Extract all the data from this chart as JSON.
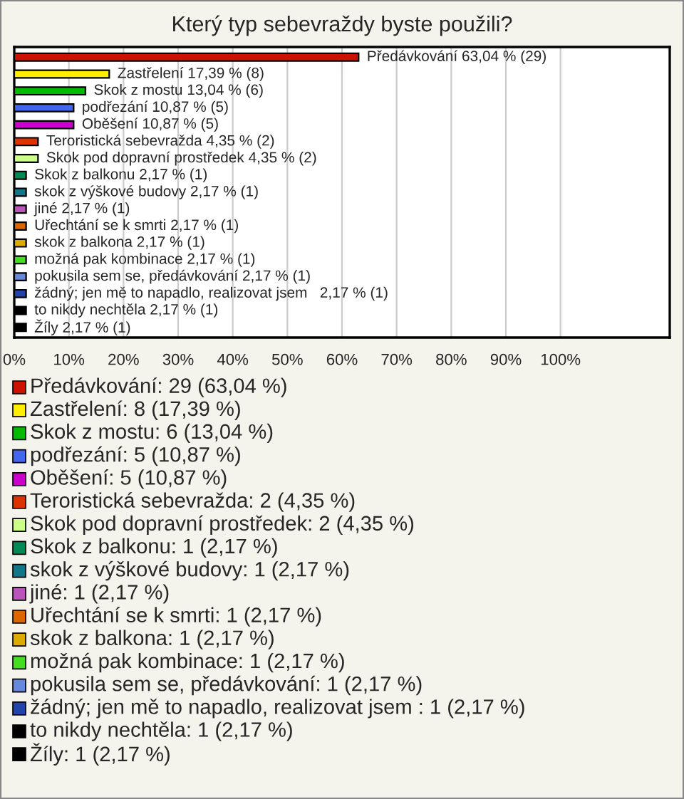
{
  "chart_data": {
    "type": "bar",
    "orientation": "horizontal",
    "title": "Který typ sebevraždy byste použili?",
    "categories": [
      "Předávkování",
      "Zastřelení",
      "Skok z mostu",
      "podřezání",
      "Oběšení",
      "Teroristická sebevražda",
      "Skok pod dopravní prostředek",
      "Skok z balkonu",
      "skok z výškové budovy",
      "jiné",
      "Uřechtání se k smrti",
      "skok z balkona",
      "možná pak kombinace",
      "pokusila sem se, předávkování",
      "žádný; jen mě to napadlo, realizovat jsem ",
      "to nikdy nechtěla",
      "Žíly"
    ],
    "values": [
      63.04,
      17.39,
      13.04,
      10.87,
      10.87,
      4.35,
      4.35,
      2.17,
      2.17,
      2.17,
      2.17,
      2.17,
      2.17,
      2.17,
      2.17,
      2.17,
      2.17
    ],
    "colors": [
      "#cc1100",
      "#ffee00",
      "#00bb00",
      "#4466ee",
      "#cc00cc",
      "#dd3300",
      "#ccff88",
      "#008855",
      "#117788",
      "#bb55bb",
      "#dd6600",
      "#ddaa00",
      "#44dd22",
      "#6688dd",
      "#2244aa",
      "#000000",
      "#000000"
    ],
    "value_labels": [
      "63,04 % (29)",
      "17,39 % (8)",
      "13,04 % (6)",
      "10,87 % (5)",
      "10,87 % (5)",
      "4,35 % (2)",
      "4,35 % (2)",
      "2,17 % (1)",
      "2,17 % (1)",
      "2,17 % (1)",
      "2,17 % (1)",
      "2,17 % (1)",
      "2,17 % (1)",
      "2,17 % (1)",
      " 2,17 % (1)",
      "2,17 % (1)",
      "2,17 % (1)"
    ],
    "xlim": [
      0,
      120
    ],
    "xticks": [
      {
        "value": 0,
        "label": "0%"
      },
      {
        "value": 10,
        "label": "10%"
      },
      {
        "value": 20,
        "label": "20%"
      },
      {
        "value": 30,
        "label": "30%"
      },
      {
        "value": 40,
        "label": "40%"
      },
      {
        "value": 50,
        "label": "50%"
      },
      {
        "value": 60,
        "label": "60%"
      },
      {
        "value": 70,
        "label": "70%"
      },
      {
        "value": 80,
        "label": "80%"
      },
      {
        "value": 90,
        "label": "90%"
      },
      {
        "value": 100,
        "label": "100%"
      }
    ],
    "grid": "x",
    "tick_labels": "x",
    "annotations": [
      "Předávkování: 29 (63,04 %)",
      "Zastřelení: 8 (17,39 %)",
      "Skok z mostu: 6 (13,04 %)",
      "podřezání: 5 (10,87 %)",
      "Oběšení: 5 (10,87 %)",
      "Teroristická sebevražda: 2 (4,35 %)",
      "Skok pod dopravní prostředek: 2 (4,35 %)",
      "Skok z balkonu: 1 (2,17 %)",
      "skok z výškové budovy: 1 (2,17 %)",
      "jiné: 1 (2,17 %)",
      "Uřechtání se k smrti: 1 (2,17 %)",
      "skok z balkona: 1 (2,17 %)",
      "možná pak kombinace: 1 (2,17 %)",
      "pokusila sem se, předávkování: 1 (2,17 %)",
      "žádný; jen mě to napadlo, realizovat jsem : 1 (2,17 %)",
      "to nikdy nechtěla: 1 (2,17 %)",
      "Žíly: 1 (2,17 %)"
    ]
  }
}
